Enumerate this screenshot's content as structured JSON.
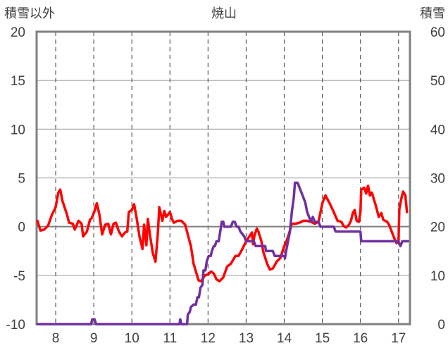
{
  "chart_data": {
    "type": "line",
    "title": "焼山",
    "left_axis_label": "積雪以外",
    "right_axis_label": "積雪",
    "ylim_left": [
      -10,
      20
    ],
    "yticks_left": [
      -10,
      -5,
      0,
      5,
      10,
      15,
      20
    ],
    "ylim_right": [
      0,
      60
    ],
    "yticks_right": [
      0,
      10,
      20,
      30,
      40,
      50,
      60
    ],
    "xlim": [
      7.5,
      17.3
    ],
    "xticks": [
      8,
      9,
      10,
      11,
      12,
      13,
      14,
      15,
      16,
      17
    ],
    "grid": true,
    "series": [
      {
        "color": "#ff0000",
        "axis": "left",
        "points": [
          [
            7.52,
            0.6
          ],
          [
            7.6,
            -0.4
          ],
          [
            7.7,
            -0.3
          ],
          [
            7.8,
            0.1
          ],
          [
            7.9,
            1.2
          ],
          [
            8.0,
            2.0
          ],
          [
            8.07,
            3.5
          ],
          [
            8.12,
            3.8
          ],
          [
            8.18,
            2.6
          ],
          [
            8.3,
            1.2
          ],
          [
            8.35,
            0.4
          ],
          [
            8.45,
            0.3
          ],
          [
            8.5,
            -0.3
          ],
          [
            8.6,
            0.6
          ],
          [
            8.68,
            0.3
          ],
          [
            8.72,
            -1.0
          ],
          [
            8.82,
            -0.5
          ],
          [
            8.9,
            0.7
          ],
          [
            8.95,
            0.9
          ],
          [
            9.02,
            1.6
          ],
          [
            9.08,
            2.4
          ],
          [
            9.15,
            1.2
          ],
          [
            9.22,
            -0.8
          ],
          [
            9.3,
            0.2
          ],
          [
            9.38,
            0.3
          ],
          [
            9.45,
            -0.8
          ],
          [
            9.52,
            0.3
          ],
          [
            9.58,
            0.4
          ],
          [
            9.66,
            -0.5
          ],
          [
            9.74,
            -1.0
          ],
          [
            9.82,
            -0.6
          ],
          [
            9.88,
            -0.5
          ],
          [
            9.92,
            1.5
          ],
          [
            10.0,
            1.7
          ],
          [
            10.06,
            2.3
          ],
          [
            10.12,
            1.0
          ],
          [
            10.2,
            -1.0
          ],
          [
            10.28,
            -2.3
          ],
          [
            10.32,
            0.2
          ],
          [
            10.38,
            -1.9
          ],
          [
            10.42,
            0.8
          ],
          [
            10.48,
            -1.0
          ],
          [
            10.55,
            -2.7
          ],
          [
            10.62,
            -3.6
          ],
          [
            10.68,
            -0.8
          ],
          [
            10.72,
            2.0
          ],
          [
            10.8,
            0.6
          ],
          [
            10.85,
            1.6
          ],
          [
            10.9,
            1.0
          ],
          [
            11.0,
            1.5
          ],
          [
            11.05,
            0.8
          ],
          [
            11.1,
            0.4
          ],
          [
            11.2,
            0.6
          ],
          [
            11.3,
            0.6
          ],
          [
            11.4,
            0.2
          ],
          [
            11.55,
            -2.0
          ],
          [
            11.62,
            -3.8
          ],
          [
            11.75,
            -5.5
          ],
          [
            11.82,
            -5.6
          ],
          [
            11.92,
            -5.0
          ],
          [
            12.0,
            -4.9
          ],
          [
            12.08,
            -4.6
          ],
          [
            12.15,
            -4.8
          ],
          [
            12.22,
            -5.4
          ],
          [
            12.3,
            -5.6
          ],
          [
            12.4,
            -5.2
          ],
          [
            12.5,
            -4.1
          ],
          [
            12.6,
            -3.8
          ],
          [
            12.72,
            -3.0
          ],
          [
            12.8,
            -3.0
          ],
          [
            12.9,
            -2.3
          ],
          [
            13.0,
            -1.5
          ],
          [
            13.05,
            -1.2
          ],
          [
            13.15,
            -0.6
          ],
          [
            13.18,
            -1.8
          ],
          [
            13.22,
            -0.9
          ],
          [
            13.28,
            -0.2
          ],
          [
            13.32,
            -0.5
          ],
          [
            13.4,
            -1.5
          ],
          [
            13.45,
            -2.6
          ],
          [
            13.55,
            -3.8
          ],
          [
            13.62,
            -4.4
          ],
          [
            13.7,
            -4.3
          ],
          [
            13.8,
            -3.6
          ],
          [
            13.9,
            -3.2
          ],
          [
            14.0,
            -2.0
          ],
          [
            14.05,
            -1.6
          ],
          [
            14.12,
            -0.8
          ],
          [
            14.2,
            0.3
          ],
          [
            14.3,
            0.3
          ],
          [
            14.4,
            0.4
          ],
          [
            14.5,
            0.6
          ],
          [
            14.6,
            0.6
          ],
          [
            14.7,
            0.5
          ],
          [
            14.8,
            0.3
          ],
          [
            14.9,
            0.5
          ],
          [
            15.0,
            2.4
          ],
          [
            15.08,
            3.2
          ],
          [
            15.18,
            2.5
          ],
          [
            15.3,
            1.5
          ],
          [
            15.4,
            0.6
          ],
          [
            15.5,
            0.5
          ],
          [
            15.55,
            0.1
          ],
          [
            15.62,
            -0.1
          ],
          [
            15.7,
            0.2
          ],
          [
            15.75,
            0.6
          ],
          [
            15.8,
            1.4
          ],
          [
            15.85,
            1.7
          ],
          [
            15.9,
            0.6
          ],
          [
            15.96,
            0.5
          ],
          [
            16.0,
            1.5
          ],
          [
            16.02,
            3.8
          ],
          [
            16.1,
            4.0
          ],
          [
            16.15,
            3.4
          ],
          [
            16.2,
            4.2
          ],
          [
            16.25,
            3.2
          ],
          [
            16.3,
            3.5
          ],
          [
            16.4,
            2.2
          ],
          [
            16.48,
            1.0
          ],
          [
            16.55,
            1.4
          ],
          [
            16.6,
            0.7
          ],
          [
            16.7,
            0.5
          ],
          [
            16.75,
            0.2
          ],
          [
            16.82,
            -0.5
          ],
          [
            16.9,
            -1.3
          ],
          [
            16.95,
            -1.7
          ],
          [
            17.0,
            -1.4
          ],
          [
            17.02,
            1.8
          ],
          [
            17.08,
            3.0
          ],
          [
            17.12,
            3.6
          ],
          [
            17.18,
            3.2
          ],
          [
            17.22,
            1.5
          ]
        ]
      },
      {
        "color": "#7030a0",
        "axis": "right",
        "points": [
          [
            7.52,
            0
          ],
          [
            8.93,
            0
          ],
          [
            8.96,
            1
          ],
          [
            9.02,
            1
          ],
          [
            9.06,
            0
          ],
          [
            11.25,
            0
          ],
          [
            11.27,
            1
          ],
          [
            11.3,
            0
          ],
          [
            11.45,
            0
          ],
          [
            11.47,
            2
          ],
          [
            11.52,
            2.5
          ],
          [
            11.55,
            3.5
          ],
          [
            11.62,
            4
          ],
          [
            11.68,
            4
          ],
          [
            11.72,
            5.5
          ],
          [
            11.76,
            5.5
          ],
          [
            11.8,
            7.5
          ],
          [
            11.85,
            8
          ],
          [
            11.88,
            11
          ],
          [
            11.93,
            11
          ],
          [
            11.97,
            13
          ],
          [
            12.02,
            14
          ],
          [
            12.07,
            14
          ],
          [
            12.1,
            15
          ],
          [
            12.15,
            16
          ],
          [
            12.18,
            16
          ],
          [
            12.22,
            17
          ],
          [
            12.28,
            17
          ],
          [
            12.32,
            19
          ],
          [
            12.36,
            21
          ],
          [
            12.4,
            21
          ],
          [
            12.43,
            20
          ],
          [
            12.5,
            20
          ],
          [
            12.55,
            20
          ],
          [
            12.6,
            20
          ],
          [
            12.65,
            21
          ],
          [
            12.7,
            21
          ],
          [
            12.75,
            20
          ],
          [
            12.8,
            20
          ],
          [
            12.85,
            19
          ],
          [
            12.9,
            18.5
          ],
          [
            12.95,
            18
          ],
          [
            13.0,
            17
          ],
          [
            13.2,
            17
          ],
          [
            13.25,
            16
          ],
          [
            13.5,
            16
          ],
          [
            13.52,
            15
          ],
          [
            13.7,
            15
          ],
          [
            13.75,
            14
          ],
          [
            14.0,
            14
          ],
          [
            14.02,
            13.5
          ],
          [
            14.05,
            15
          ],
          [
            14.1,
            17
          ],
          [
            14.15,
            19
          ],
          [
            14.2,
            23
          ],
          [
            14.25,
            26
          ],
          [
            14.28,
            29
          ],
          [
            14.35,
            29
          ],
          [
            14.4,
            28
          ],
          [
            14.45,
            27
          ],
          [
            14.5,
            26
          ],
          [
            14.55,
            25
          ],
          [
            14.6,
            23
          ],
          [
            14.65,
            22
          ],
          [
            14.7,
            21
          ],
          [
            14.75,
            22
          ],
          [
            14.8,
            21
          ],
          [
            14.85,
            21
          ],
          [
            14.9,
            21
          ],
          [
            14.95,
            20
          ],
          [
            15.0,
            20
          ],
          [
            15.05,
            20
          ],
          [
            15.1,
            20
          ],
          [
            15.15,
            20
          ],
          [
            15.2,
            20
          ],
          [
            15.25,
            20
          ],
          [
            15.3,
            20
          ],
          [
            15.35,
            19
          ],
          [
            15.45,
            19
          ],
          [
            15.5,
            19
          ],
          [
            16.0,
            19
          ],
          [
            16.02,
            17
          ],
          [
            17.0,
            17
          ],
          [
            17.05,
            16
          ],
          [
            17.1,
            17
          ],
          [
            17.25,
            17
          ]
        ]
      }
    ]
  }
}
